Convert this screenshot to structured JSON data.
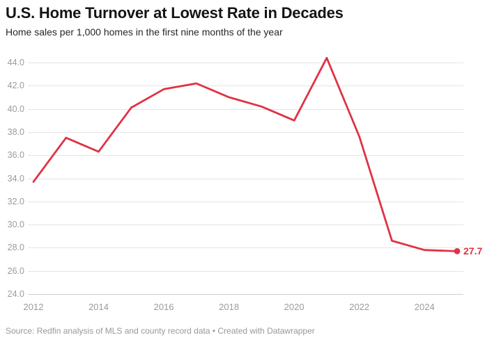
{
  "footer": {
    "source": "Source: Redfin analysis of MLS and county record data • Created with Datawrapper"
  },
  "colors": {
    "line": "#e03244",
    "end_dot": "#e03244",
    "end_label": "#e03244"
  },
  "chart_data": {
    "type": "line",
    "title": "U.S. Home Turnover at Lowest Rate in Decades",
    "subtitle": "Home sales per 1,000 homes in the first nine months of the year",
    "x": [
      2012,
      2013,
      2014,
      2015,
      2016,
      2017,
      2018,
      2019,
      2020,
      2021,
      2022,
      2023,
      2024,
      2025
    ],
    "values": [
      33.7,
      37.5,
      36.3,
      40.1,
      41.7,
      42.2,
      41.0,
      40.2,
      39.0,
      44.4,
      37.6,
      28.6,
      27.8,
      27.7
    ],
    "series_name": "Home sales per 1,000 homes",
    "xlim": [
      2012,
      2025
    ],
    "ylim": [
      24,
      44
    ],
    "x_ticks": [
      2012,
      2014,
      2016,
      2018,
      2020,
      2022,
      2024
    ],
    "x_tick_labels": [
      "2012",
      "2014",
      "2016",
      "2018",
      "2020",
      "2022",
      "2024"
    ],
    "y_ticks": [
      24,
      26,
      28,
      30,
      32,
      34,
      36,
      38,
      40,
      42,
      44
    ],
    "y_tick_labels": [
      "24.0",
      "26.0",
      "28.0",
      "30.0",
      "32.0",
      "34.0",
      "36.0",
      "38.0",
      "40.0",
      "42.0",
      "44.0"
    ],
    "end_label": "27.7",
    "grid": "horizontal",
    "legend": "none"
  }
}
